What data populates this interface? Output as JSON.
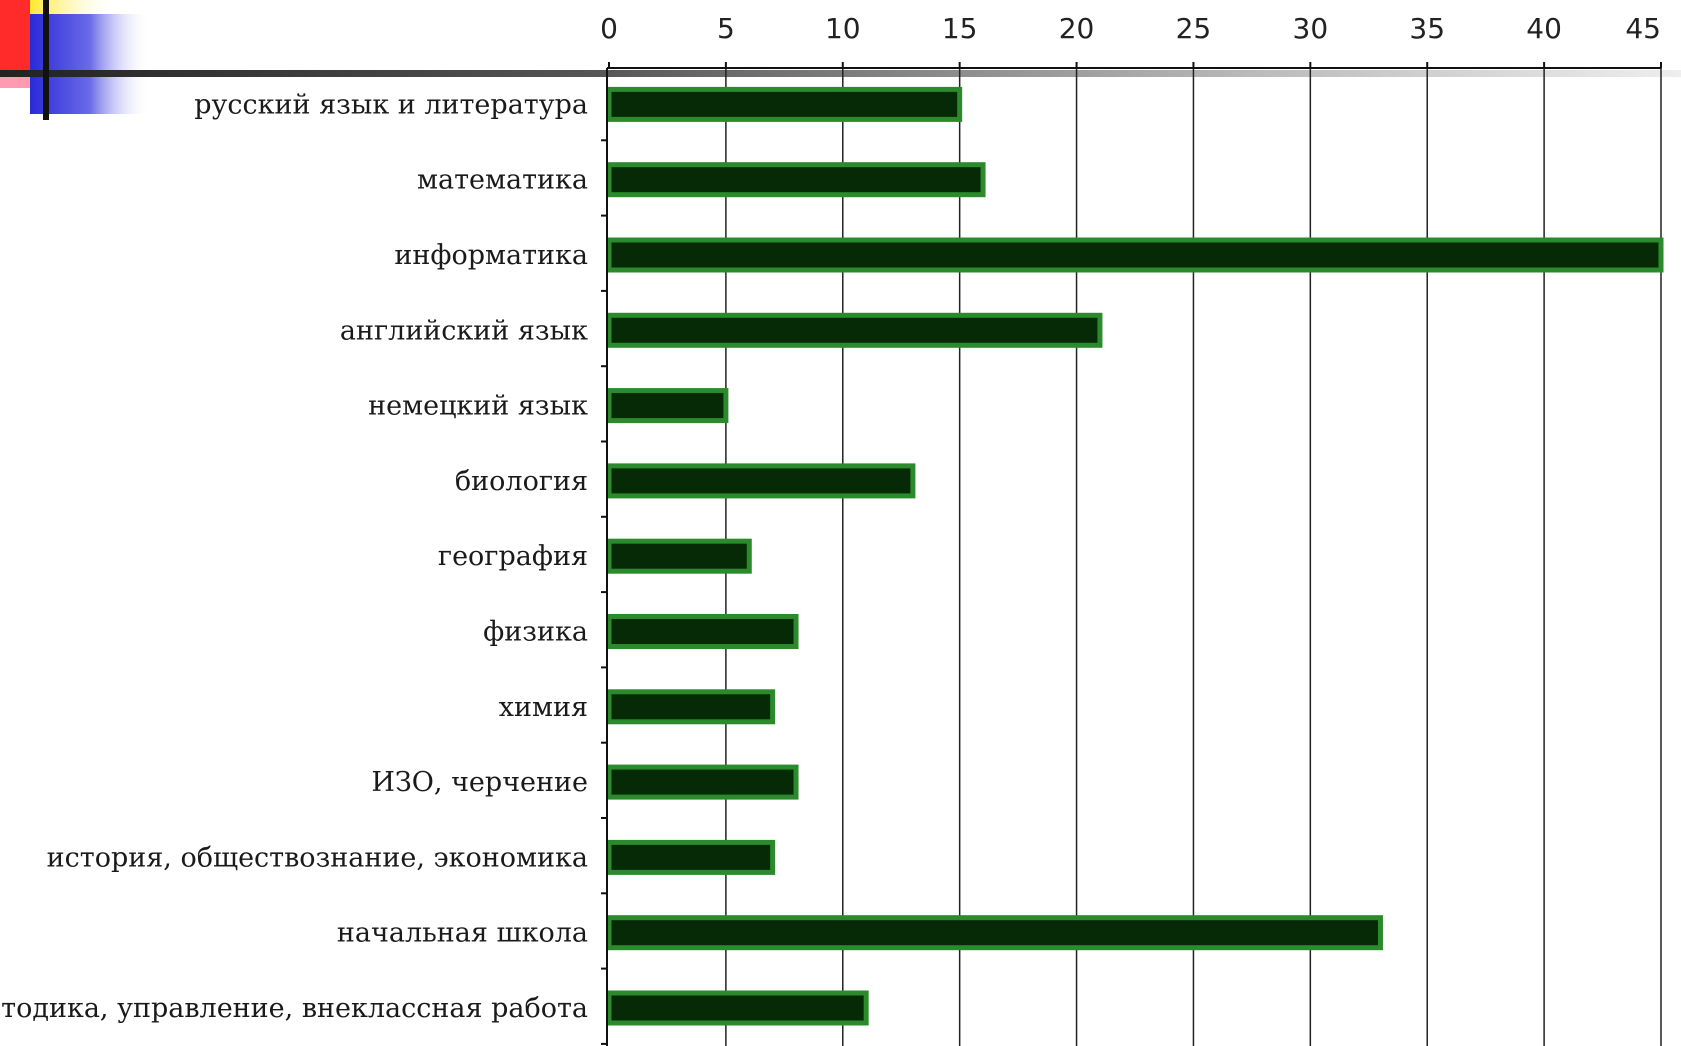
{
  "slide": {
    "accent_colors": {
      "red": "#ff2a2a",
      "yellow": "#ffe82a",
      "blue": "#2a2ad8",
      "pink": "#ff9ab0",
      "bar_fill": "#062a06",
      "bar_stroke": "#2b8a2b"
    }
  },
  "chart_data": {
    "type": "bar",
    "orientation": "horizontal",
    "categories": [
      "русский язык и литература",
      "математика",
      "информатика",
      "английский язык",
      "немецкий язык",
      "биология",
      "география",
      "физика",
      "химия",
      "ИЗО, черчение",
      "история, обществознание, экономика",
      "начальная школа",
      "методика, управление, внеклассная работа"
    ],
    "values": [
      15,
      16,
      45,
      21,
      5,
      13,
      6,
      8,
      7,
      8,
      7,
      33,
      11
    ],
    "ticks": [
      "0",
      "5",
      "10",
      "15",
      "20",
      "25",
      "30",
      "35",
      "40",
      "45"
    ],
    "xlim": [
      0,
      45
    ],
    "axis_position": "top",
    "grid": true,
    "legend": "none"
  }
}
